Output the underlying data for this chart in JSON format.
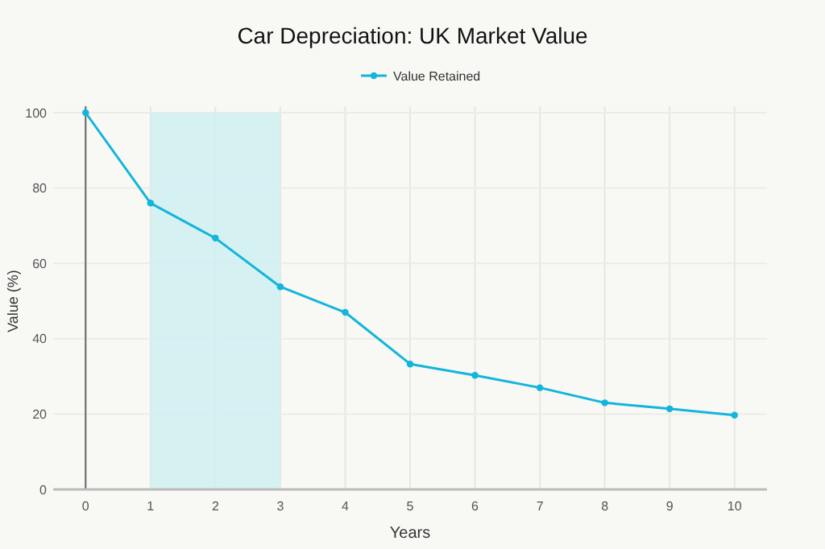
{
  "chart_data": {
    "type": "line",
    "title": "Car Depreciation: UK Market Value",
    "xlabel": "Years",
    "ylabel": "Value (%)",
    "x": [
      0,
      1,
      2,
      3,
      4,
      5,
      6,
      7,
      8,
      9,
      10
    ],
    "series": [
      {
        "name": "Value Retained",
        "color": "#12b5dc",
        "values": [
          100,
          76,
          66.7,
          53.8,
          47,
          33.3,
          30.3,
          27,
          23,
          21.4,
          19.7
        ]
      }
    ],
    "xlim": [
      -0.5,
      10.5
    ],
    "xticks": [
      0,
      1,
      2,
      3,
      4,
      5,
      6,
      7,
      8,
      9,
      10
    ],
    "ylim": [
      0,
      100
    ],
    "yticks": [
      0,
      20,
      40,
      60,
      80,
      100
    ],
    "bands": [
      {
        "axis": "x",
        "from": 1,
        "to": 3,
        "color": "#d2eff2"
      }
    ],
    "grid": true,
    "legend": "top",
    "marker": "circle",
    "line_style": "solid"
  }
}
